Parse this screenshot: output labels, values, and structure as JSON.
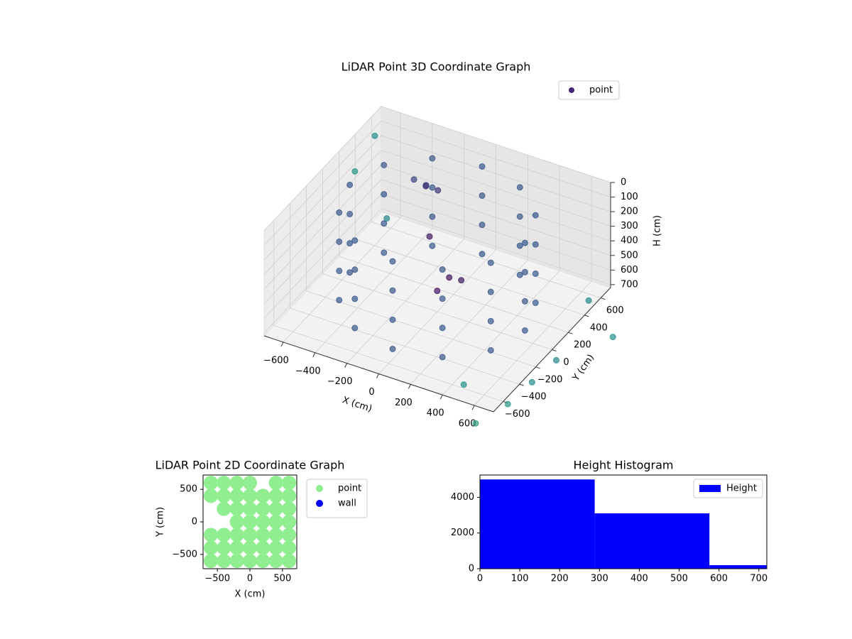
{
  "chart_data": [
    {
      "type": "scatter3d",
      "title": "LiDAR Point 3D Coordinate Graph",
      "xlabel": "X (cm)",
      "ylabel": "Y (cm)",
      "zlabel": "H (cm)",
      "xlim": [
        -720,
        720
      ],
      "ylim": [
        -720,
        720
      ],
      "zlim": [
        0,
        720
      ],
      "zinverted": true,
      "xticks": [
        {
          "value": -600,
          "label": "−600"
        },
        {
          "value": -400,
          "label": "−400"
        },
        {
          "value": -200,
          "label": "−200"
        },
        0,
        200,
        400,
        600
      ],
      "yticks": [
        {
          "value": -600,
          "label": "−600"
        },
        {
          "value": -400,
          "label": "−400"
        },
        {
          "value": -200,
          "label": "−200"
        },
        0,
        200,
        400,
        600
      ],
      "zticks": [
        0,
        100,
        200,
        300,
        400,
        500,
        600,
        700
      ],
      "grid": true,
      "legend": "upper-right",
      "colormap": [
        "#440154",
        "#3b528b",
        "#21918c",
        "#5ec962",
        "#fde725"
      ],
      "series": [
        {
          "name": "point",
          "color": "#482475",
          "x": [
            550,
            550,
            550,
            550,
            476,
            476,
            476,
            476,
            275,
            275,
            275,
            275,
            0,
            0,
            0,
            0,
            -275,
            -275,
            -275,
            -275,
            -476,
            -476,
            -476,
            -476,
            -550,
            -550,
            -550,
            -550,
            -476,
            -476,
            -476,
            -476,
            -275,
            -275,
            -275,
            -275,
            0,
            0,
            0,
            0,
            275,
            275,
            275,
            275,
            476,
            476,
            476,
            476,
            -300,
            -250,
            -200,
            -150,
            100,
            150,
            50,
            -100,
            -850,
            900,
            850,
            950,
            800,
            700,
            -750,
            -650,
            600,
            1000
          ],
          "y": [
            0,
            0,
            0,
            0,
            275,
            275,
            275,
            275,
            476,
            476,
            476,
            476,
            550,
            550,
            550,
            550,
            476,
            476,
            476,
            476,
            275,
            275,
            275,
            275,
            0,
            0,
            0,
            0,
            -275,
            -275,
            -275,
            -275,
            -476,
            -476,
            -476,
            -476,
            -550,
            -550,
            -550,
            -550,
            -476,
            -476,
            -476,
            -476,
            -275,
            -275,
            -275,
            -275,
            300,
            350,
            250,
            300,
            -50,
            0,
            -100,
            100,
            650,
            -300,
            -500,
            0,
            -700,
            -900,
            700,
            650,
            -850,
            200
          ],
          "z": [
            50,
            250,
            450,
            650,
            50,
            250,
            450,
            650,
            50,
            250,
            450,
            650,
            50,
            250,
            450,
            650,
            50,
            250,
            450,
            650,
            50,
            250,
            450,
            650,
            50,
            250,
            450,
            650,
            50,
            250,
            450,
            650,
            50,
            250,
            450,
            650,
            50,
            250,
            450,
            650,
            50,
            250,
            450,
            650,
            50,
            250,
            450,
            650,
            100,
            150,
            80,
            120,
            420,
            450,
            500,
            300,
            450,
            550,
            600,
            300,
            650,
            700,
            200,
            700,
            500,
            650
          ]
        }
      ]
    },
    {
      "type": "scatter",
      "title": "LiDAR Point 2D Coordinate Graph",
      "xlabel": "X (cm)",
      "ylabel": "Y (cm)",
      "xlim": [
        -720,
        720
      ],
      "ylim": [
        -720,
        720
      ],
      "xticks": [
        {
          "value": -500,
          "label": "−500"
        },
        0,
        500
      ],
      "yticks": [
        {
          "value": -500,
          "label": "−500"
        },
        0,
        500
      ],
      "legend": "outside-right",
      "series": [
        {
          "name": "point",
          "color": "#90ee90",
          "x": [
            -600,
            -400,
            -200,
            0,
            400,
            600,
            -600,
            -400,
            -200,
            0,
            200,
            400,
            600,
            -400,
            -200,
            0,
            200,
            400,
            600,
            -200,
            0,
            200,
            400,
            600,
            -600,
            -400,
            -200,
            0,
            200,
            400,
            600,
            -600,
            -400,
            -200,
            0,
            200,
            400,
            600,
            -600,
            -400,
            -200,
            0,
            200,
            400,
            600
          ],
          "y": [
            600,
            600,
            600,
            600,
            600,
            600,
            400,
            400,
            400,
            400,
            400,
            400,
            400,
            200,
            200,
            200,
            200,
            200,
            200,
            0,
            0,
            0,
            0,
            0,
            -200,
            -200,
            -200,
            -200,
            -200,
            -200,
            -200,
            -400,
            -400,
            -400,
            -400,
            -400,
            -400,
            -400,
            -600,
            -600,
            -600,
            -600,
            -600,
            -600,
            -600
          ]
        },
        {
          "name": "wall",
          "color": "#0000ff",
          "x": [],
          "y": []
        }
      ]
    },
    {
      "type": "histogram",
      "title": "Height Histogram",
      "bins": [
        0,
        288,
        576,
        720
      ],
      "xlim": [
        0,
        720
      ],
      "ylim": [
        0,
        5250
      ],
      "xticks": [
        0,
        100,
        200,
        300,
        400,
        500,
        600,
        700
      ],
      "yticks": [
        0,
        2000,
        4000
      ],
      "legend": "upper-right",
      "series": [
        {
          "name": "Height",
          "color": "#0000ff",
          "values": [
            5000,
            3100,
            200
          ]
        }
      ]
    }
  ]
}
